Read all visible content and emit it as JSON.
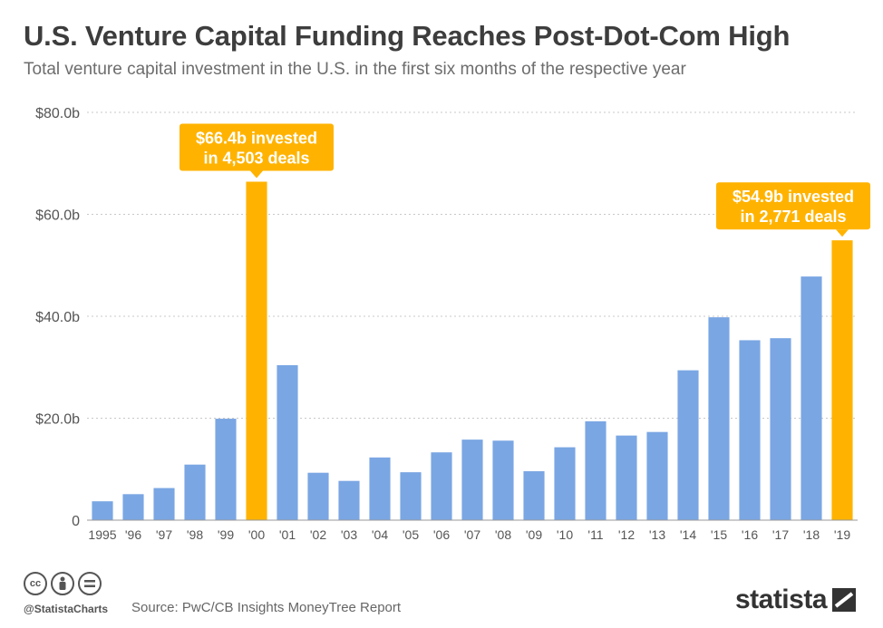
{
  "header": {
    "title": "U.S. Venture Capital Funding Reaches Post-Dot-Com High",
    "subtitle": "Total venture capital investment in the U.S. in the first six months of the respective year"
  },
  "footer": {
    "handle": "@StatistaCharts",
    "source": "Source: PwC/CB Insights MoneyTree Report",
    "brand": "statista",
    "icons": [
      "cc-icon",
      "by-icon",
      "nd-icon"
    ]
  },
  "chart_data": {
    "type": "bar",
    "categories": [
      "1995",
      "'96",
      "'97",
      "'98",
      "'99",
      "'00",
      "'01",
      "'02",
      "'03",
      "'04",
      "'05",
      "'06",
      "'07",
      "'08",
      "'09",
      "'10",
      "'11",
      "'12",
      "'13",
      "'14",
      "'15",
      "'16",
      "'17",
      "'18",
      "'19"
    ],
    "values": [
      3.7,
      5.1,
      6.3,
      10.9,
      19.9,
      66.4,
      30.4,
      9.3,
      7.7,
      12.3,
      9.4,
      13.3,
      15.8,
      15.6,
      9.6,
      14.3,
      19.4,
      16.6,
      17.3,
      29.4,
      39.8,
      35.3,
      35.7,
      47.8,
      54.9
    ],
    "highlight_categories": [
      "'00",
      "'19"
    ],
    "colors": {
      "bar": "#7aa6e3",
      "highlight": "#ffb300",
      "grid": "#c8c8c8",
      "axis_text": "#555555"
    },
    "ylim": [
      0,
      80
    ],
    "yticks": [
      0,
      20,
      40,
      60,
      80
    ],
    "ytick_labels": [
      "0",
      "$20.0b",
      "$40.0b",
      "$60.0b",
      "$80.0b"
    ],
    "grid": true,
    "annotations": [
      {
        "category": "'00",
        "lines": [
          "$66.4b invested",
          "in 4,503 deals"
        ]
      },
      {
        "category": "'19",
        "lines": [
          "$54.9b invested",
          "in 2,771 deals"
        ]
      }
    ]
  }
}
